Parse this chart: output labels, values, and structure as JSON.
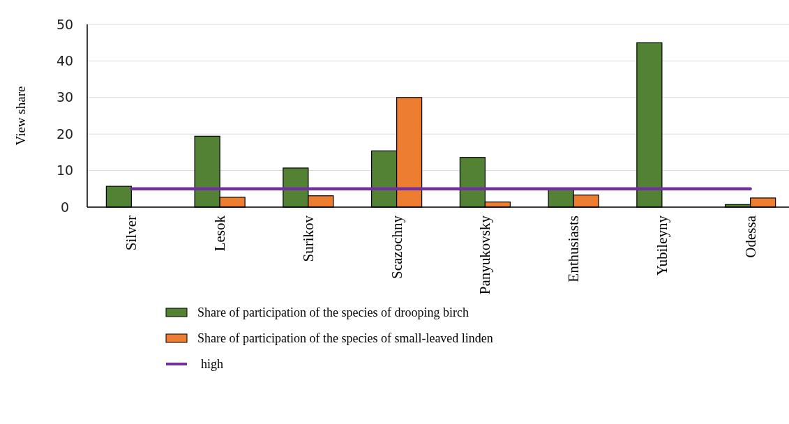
{
  "chart_data": {
    "type": "bar",
    "ylabel": "View share",
    "categories": [
      "Silver",
      "Lesok",
      "Surikov",
      "Scazochny",
      "Panyukovsky",
      "Enthusiasts",
      "Yubileyny",
      "Odessa"
    ],
    "series": [
      {
        "name": "Share of participation of the species of drooping birch",
        "color": "#548235",
        "values": [
          5.7,
          19.4,
          10.7,
          15.4,
          13.6,
          5.2,
          45,
          0.7
        ]
      },
      {
        "name": "Share of participation of the species of small-leaved linden",
        "color": "#ed7d31",
        "values": [
          null,
          2.7,
          3.1,
          30,
          1.4,
          3.3,
          null,
          2.5
        ]
      },
      {
        "name": "high",
        "type": "line",
        "color": "#7030a0",
        "values": [
          5,
          5,
          5,
          5,
          5,
          5,
          5,
          5
        ]
      }
    ],
    "ylim": [
      0,
      50
    ],
    "yticks": [
      0,
      10,
      20,
      30,
      40,
      50
    ],
    "grid": "y",
    "legend": "bottom",
    "marker": "none"
  }
}
